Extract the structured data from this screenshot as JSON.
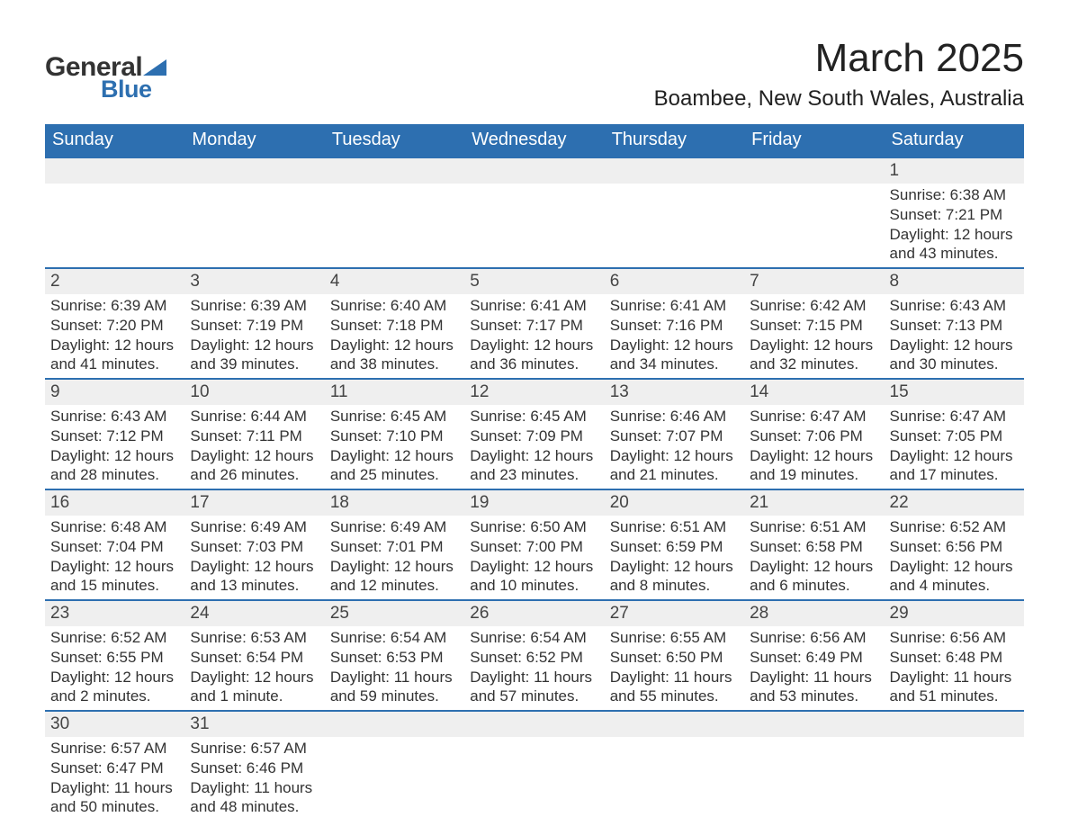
{
  "logo": {
    "text1": "General",
    "text2": "Blue",
    "accent_color": "#2d6fb0"
  },
  "title": "March 2025",
  "location": "Boambee, New South Wales, Australia",
  "colors": {
    "header_bg": "#2d6fb0",
    "header_text": "#ffffff",
    "daynum_bg": "#efefef",
    "row_border": "#2d6fb0",
    "body_text": "#333333"
  },
  "weekdays": [
    "Sunday",
    "Monday",
    "Tuesday",
    "Wednesday",
    "Thursday",
    "Friday",
    "Saturday"
  ],
  "weeks": [
    [
      null,
      null,
      null,
      null,
      null,
      null,
      {
        "n": "1",
        "sr": "6:38 AM",
        "ss": "7:21 PM",
        "dl": "12 hours and 43 minutes."
      }
    ],
    [
      {
        "n": "2",
        "sr": "6:39 AM",
        "ss": "7:20 PM",
        "dl": "12 hours and 41 minutes."
      },
      {
        "n": "3",
        "sr": "6:39 AM",
        "ss": "7:19 PM",
        "dl": "12 hours and 39 minutes."
      },
      {
        "n": "4",
        "sr": "6:40 AM",
        "ss": "7:18 PM",
        "dl": "12 hours and 38 minutes."
      },
      {
        "n": "5",
        "sr": "6:41 AM",
        "ss": "7:17 PM",
        "dl": "12 hours and 36 minutes."
      },
      {
        "n": "6",
        "sr": "6:41 AM",
        "ss": "7:16 PM",
        "dl": "12 hours and 34 minutes."
      },
      {
        "n": "7",
        "sr": "6:42 AM",
        "ss": "7:15 PM",
        "dl": "12 hours and 32 minutes."
      },
      {
        "n": "8",
        "sr": "6:43 AM",
        "ss": "7:13 PM",
        "dl": "12 hours and 30 minutes."
      }
    ],
    [
      {
        "n": "9",
        "sr": "6:43 AM",
        "ss": "7:12 PM",
        "dl": "12 hours and 28 minutes."
      },
      {
        "n": "10",
        "sr": "6:44 AM",
        "ss": "7:11 PM",
        "dl": "12 hours and 26 minutes."
      },
      {
        "n": "11",
        "sr": "6:45 AM",
        "ss": "7:10 PM",
        "dl": "12 hours and 25 minutes."
      },
      {
        "n": "12",
        "sr": "6:45 AM",
        "ss": "7:09 PM",
        "dl": "12 hours and 23 minutes."
      },
      {
        "n": "13",
        "sr": "6:46 AM",
        "ss": "7:07 PM",
        "dl": "12 hours and 21 minutes."
      },
      {
        "n": "14",
        "sr": "6:47 AM",
        "ss": "7:06 PM",
        "dl": "12 hours and 19 minutes."
      },
      {
        "n": "15",
        "sr": "6:47 AM",
        "ss": "7:05 PM",
        "dl": "12 hours and 17 minutes."
      }
    ],
    [
      {
        "n": "16",
        "sr": "6:48 AM",
        "ss": "7:04 PM",
        "dl": "12 hours and 15 minutes."
      },
      {
        "n": "17",
        "sr": "6:49 AM",
        "ss": "7:03 PM",
        "dl": "12 hours and 13 minutes."
      },
      {
        "n": "18",
        "sr": "6:49 AM",
        "ss": "7:01 PM",
        "dl": "12 hours and 12 minutes."
      },
      {
        "n": "19",
        "sr": "6:50 AM",
        "ss": "7:00 PM",
        "dl": "12 hours and 10 minutes."
      },
      {
        "n": "20",
        "sr": "6:51 AM",
        "ss": "6:59 PM",
        "dl": "12 hours and 8 minutes."
      },
      {
        "n": "21",
        "sr": "6:51 AM",
        "ss": "6:58 PM",
        "dl": "12 hours and 6 minutes."
      },
      {
        "n": "22",
        "sr": "6:52 AM",
        "ss": "6:56 PM",
        "dl": "12 hours and 4 minutes."
      }
    ],
    [
      {
        "n": "23",
        "sr": "6:52 AM",
        "ss": "6:55 PM",
        "dl": "12 hours and 2 minutes."
      },
      {
        "n": "24",
        "sr": "6:53 AM",
        "ss": "6:54 PM",
        "dl": "12 hours and 1 minute."
      },
      {
        "n": "25",
        "sr": "6:54 AM",
        "ss": "6:53 PM",
        "dl": "11 hours and 59 minutes."
      },
      {
        "n": "26",
        "sr": "6:54 AM",
        "ss": "6:52 PM",
        "dl": "11 hours and 57 minutes."
      },
      {
        "n": "27",
        "sr": "6:55 AM",
        "ss": "6:50 PM",
        "dl": "11 hours and 55 minutes."
      },
      {
        "n": "28",
        "sr": "6:56 AM",
        "ss": "6:49 PM",
        "dl": "11 hours and 53 minutes."
      },
      {
        "n": "29",
        "sr": "6:56 AM",
        "ss": "6:48 PM",
        "dl": "11 hours and 51 minutes."
      }
    ],
    [
      {
        "n": "30",
        "sr": "6:57 AM",
        "ss": "6:47 PM",
        "dl": "11 hours and 50 minutes."
      },
      {
        "n": "31",
        "sr": "6:57 AM",
        "ss": "6:46 PM",
        "dl": "11 hours and 48 minutes."
      },
      null,
      null,
      null,
      null,
      null
    ]
  ],
  "labels": {
    "sunrise": "Sunrise: ",
    "sunset": "Sunset: ",
    "daylight": "Daylight: "
  }
}
